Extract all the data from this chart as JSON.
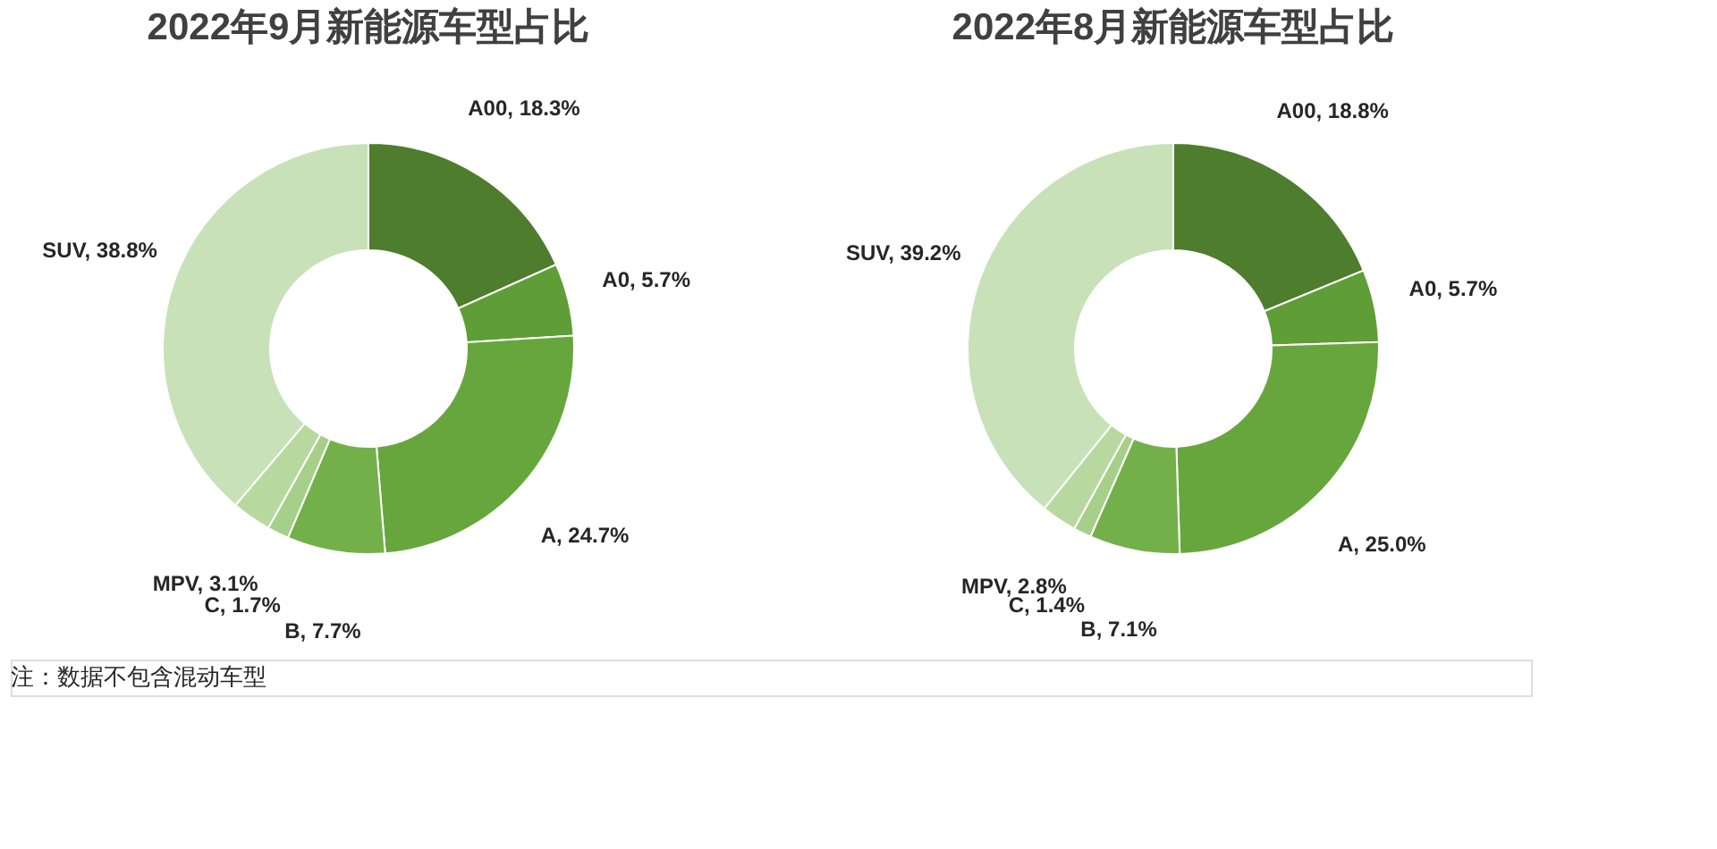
{
  "chart_data": [
    {
      "type": "donut",
      "title": "2022年9月新能源车型占比",
      "categories": [
        "A00",
        "A0",
        "A",
        "B",
        "C",
        "MPV",
        "SUV"
      ],
      "values": [
        18.3,
        5.7,
        24.7,
        7.7,
        1.7,
        3.1,
        38.8
      ],
      "value_labels": [
        "18.3%",
        "5.7%",
        "24.7%",
        "7.7%",
        "1.7%",
        "3.1%",
        "38.8%"
      ],
      "colors": [
        "#4e7d2d",
        "#5f9e36",
        "#67a63d",
        "#74b04a",
        "#a6cf8a",
        "#b7d99f",
        "#c8e1b8"
      ],
      "data_labels": true,
      "annotations": [
        "注：数据不包含混动车型"
      ]
    },
    {
      "type": "donut",
      "title": "2022年8月新能源车型占比",
      "categories": [
        "A00",
        "A0",
        "A",
        "B",
        "C",
        "MPV",
        "SUV"
      ],
      "values": [
        18.8,
        5.7,
        25.0,
        7.1,
        1.4,
        2.8,
        39.2
      ],
      "value_labels": [
        "18.8%",
        "5.7%",
        "25.0%",
        "7.1%",
        "1.4%",
        "2.8%",
        "39.2%"
      ],
      "colors": [
        "#4e7d2d",
        "#5f9e36",
        "#67a63d",
        "#74b04a",
        "#a6cf8a",
        "#b7d99f",
        "#c8e1b8"
      ],
      "data_labels": true
    }
  ]
}
